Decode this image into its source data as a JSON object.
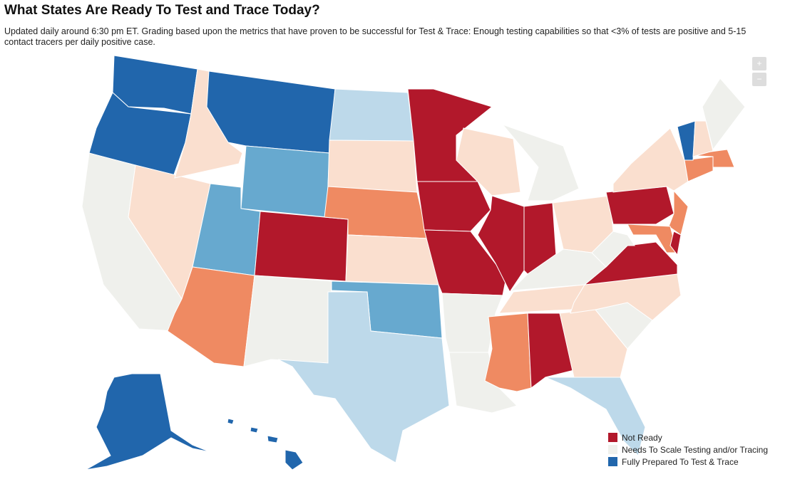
{
  "header": {
    "title": "What States Are Ready To Test and Trace Today?",
    "subtitle": "Updated daily around 6:30 pm ET. Grading based upon the metrics that have proven to be successful for Test & Trace: Enough testing capabilities so that <3% of tests are positive and 5-15 contact tracers per daily positive case."
  },
  "zoom": {
    "in": "+",
    "out": "−"
  },
  "legend": [
    {
      "label": "Not Ready",
      "color": "#b2182b"
    },
    {
      "label": "Needs To Scale Testing and/or Tracing",
      "color": "#eff0ec"
    },
    {
      "label": "Fully Prepared To Test & Trace",
      "color": "#2166ac"
    }
  ]
}
